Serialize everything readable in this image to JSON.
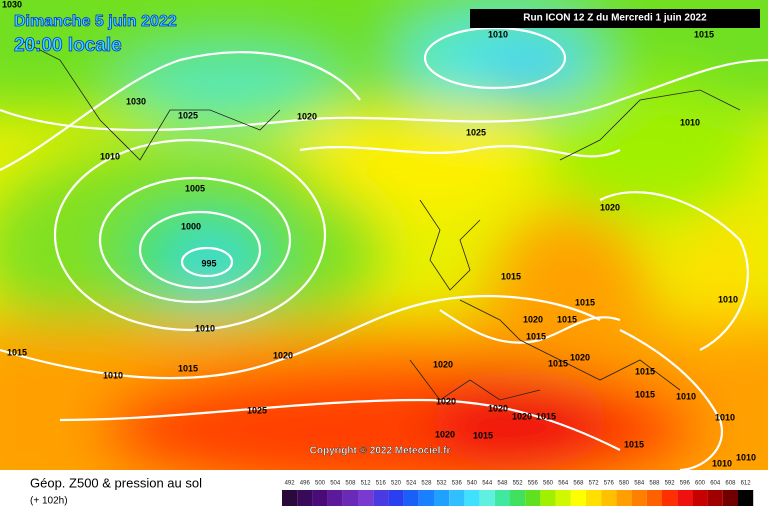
{
  "header": {
    "date": "Dimanche 5 juin 2022",
    "time": "20:00 locale",
    "run": "Run ICON 12 Z du Mercredi 1 juin 2022"
  },
  "copyright": "Copyright © 2022 Meteociel.fr",
  "footer": {
    "title": "Géop. Z500 & pression au sol",
    "lead": "(+ 102h)"
  },
  "isobar_labels": [
    "1030",
    "1010",
    "1015",
    "1030",
    "1025",
    "1020",
    "1025",
    "1010",
    "1010",
    "1005",
    "1000",
    "995",
    "1020",
    "1015",
    "1010",
    "1015",
    "1010",
    "1020",
    "1015",
    "1015",
    "1020",
    "1015",
    "1020",
    "1015",
    "1010",
    "1015",
    "1020",
    "1015",
    "1010",
    "1015",
    "1010",
    "1025",
    "1020",
    "1020",
    "1020",
    "1015",
    "1020",
    "1015",
    "1015",
    "1010",
    "1010"
  ],
  "colorbar": {
    "values": [
      492,
      496,
      500,
      504,
      508,
      512,
      516,
      520,
      524,
      528,
      532,
      536,
      540,
      544,
      548,
      552,
      556,
      560,
      564,
      568,
      572,
      576,
      580,
      584,
      588,
      592,
      596,
      600,
      604,
      608,
      612
    ],
    "colors": [
      "#2a0a3a",
      "#3a0a5a",
      "#4b0a7a",
      "#5a1a9a",
      "#6a2ab8",
      "#7a3ad0",
      "#4a3ae0",
      "#2a40f0",
      "#1a60f8",
      "#1a80ff",
      "#20a0ff",
      "#30c0ff",
      "#40e0ff",
      "#60f0e0",
      "#40e8a0",
      "#40e060",
      "#60e020",
      "#a0f000",
      "#d0f800",
      "#ffff00",
      "#ffe000",
      "#ffc000",
      "#ffa000",
      "#ff8000",
      "#ff6000",
      "#ff3000",
      "#f01010",
      "#c80000",
      "#a00000",
      "#700000",
      "#000000"
    ]
  }
}
